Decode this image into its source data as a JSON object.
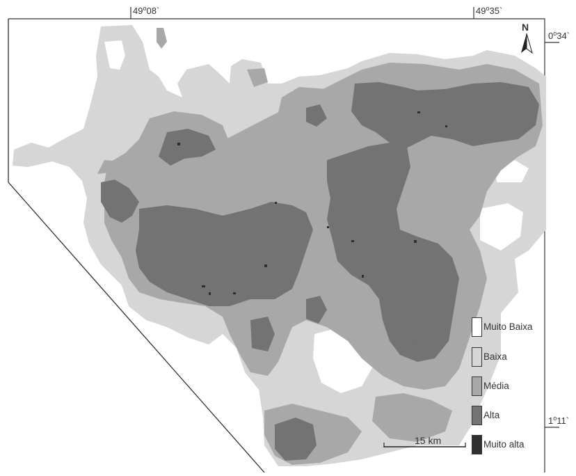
{
  "coords": {
    "top_left": {
      "deg": "49",
      "min": "08`"
    },
    "top_right": {
      "deg": "49",
      "min": "35`"
    },
    "right_top": {
      "deg": "0",
      "min": "34`"
    },
    "right_bottom": {
      "deg": "1",
      "min": "11`"
    }
  },
  "north_label": "N",
  "scale_label": "15 km",
  "legend": [
    {
      "label": "Muito Baixa",
      "color": "#ffffff"
    },
    {
      "label": "Baixa",
      "color": "#d6d6d6"
    },
    {
      "label": "Média",
      "color": "#a8a8a8"
    },
    {
      "label": "Alta",
      "color": "#737373"
    },
    {
      "label": "Muito alta",
      "color": "#2f2f2f"
    }
  ],
  "classes": {
    "muito_baixa": "#ffffff",
    "baixa": "#d6d6d6",
    "media": "#a8a8a8",
    "alta": "#737373",
    "muito_alta": "#2f2f2f"
  }
}
